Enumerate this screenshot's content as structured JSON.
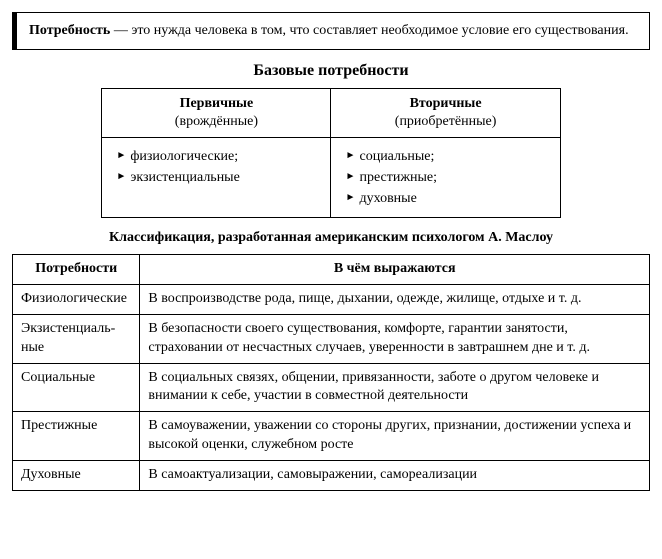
{
  "definition": {
    "term": "Потребность",
    "text": " — это нужда человека в том, что составляет необходимое условие его существования."
  },
  "basic": {
    "title": "Базовые потребности",
    "cols": [
      {
        "head": "Первичные",
        "sub": "(врождённые)",
        "items": [
          "физиологические;",
          "экзистенциальные"
        ]
      },
      {
        "head": "Вторичные",
        "sub": "(приобретённые)",
        "items": [
          "социальные;",
          "престижные;",
          "духовные"
        ]
      }
    ]
  },
  "classification": {
    "subtitle": "Классификация, разработанная американским психологом А. Маслоу",
    "headers": [
      "Потребности",
      "В чём выражаются"
    ],
    "rows": [
      {
        "name": "Физиологи­че­ские",
        "desc": "В воспроизводстве рода, пище, дыхании, одежде, жи­лище, отдыхе и т. д."
      },
      {
        "name": "Экзистенци­аль­ные",
        "desc": "В безопасности своего существования, комфорте, га­рантии занятости, страховании от несчастных случаев, уверенности в завтрашнем дне и т. д."
      },
      {
        "name": "Социальные",
        "desc": "В социальных связях, общении, привязанности, забо­те о другом человеке и внимании к себе, участии в со­вместной деятельности"
      },
      {
        "name": "Престижные",
        "desc": "В самоуважении, уважении со стороны других, при­знании, достижении успеха и высокой оценки, служеб­ном росте"
      },
      {
        "name": "Духовные",
        "desc": "В самоактуализации, самовыражении, самореализации"
      }
    ]
  }
}
